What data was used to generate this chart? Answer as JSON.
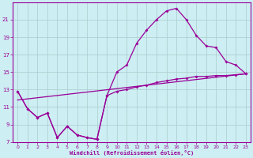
{
  "xlabel": "Windchill (Refroidissement éolien,°C)",
  "bg_color": "#cdeef2",
  "line_color": "#990099",
  "grid_color": "#aacccc",
  "xlim": [
    -0.5,
    23.5
  ],
  "ylim": [
    7,
    23
  ],
  "xticks": [
    0,
    1,
    2,
    3,
    4,
    5,
    6,
    7,
    8,
    9,
    10,
    11,
    12,
    13,
    14,
    15,
    16,
    17,
    18,
    19,
    20,
    21,
    22,
    23
  ],
  "yticks": [
    7,
    9,
    11,
    13,
    15,
    17,
    19,
    21
  ],
  "series1_x": [
    0,
    1,
    2,
    3,
    4,
    5,
    6,
    7,
    8,
    9,
    10,
    11,
    12,
    13,
    14,
    15,
    16,
    17,
    18,
    19,
    20,
    21,
    22,
    23
  ],
  "series1_y": [
    12.8,
    10.8,
    9.8,
    10.3,
    7.5,
    8.8,
    7.8,
    7.5,
    7.3,
    12.3,
    15.0,
    15.8,
    18.3,
    19.8,
    21.0,
    22.0,
    22.3,
    21.0,
    19.2,
    18.0,
    17.8,
    16.2,
    15.8,
    14.8
  ],
  "series2_x": [
    0,
    1,
    2,
    3,
    4,
    5,
    6,
    7,
    8,
    9,
    10,
    11,
    12,
    13,
    14,
    15,
    16,
    17,
    18,
    19,
    20,
    21,
    22,
    23
  ],
  "series2_y": [
    12.8,
    10.8,
    9.8,
    10.3,
    7.5,
    8.8,
    7.8,
    7.5,
    7.3,
    12.3,
    12.8,
    13.0,
    13.3,
    13.5,
    13.8,
    14.0,
    14.2,
    14.3,
    14.5,
    14.5,
    14.6,
    14.6,
    14.7,
    14.8
  ],
  "series3_x": [
    0,
    23
  ],
  "series3_y": [
    11.8,
    14.8
  ]
}
